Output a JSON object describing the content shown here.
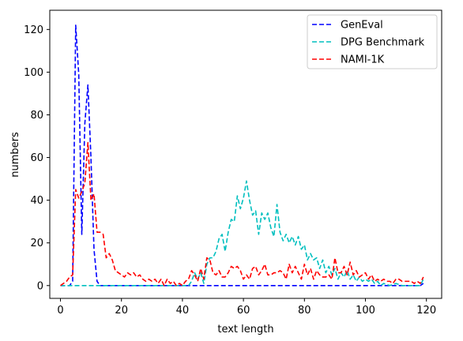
{
  "chart_data": {
    "type": "line",
    "xlabel": "text length",
    "ylabel": "numbers",
    "xlim": [
      -3.5,
      125
    ],
    "ylim": [
      -6,
      129
    ],
    "xticks": [
      0,
      20,
      40,
      60,
      80,
      100,
      120
    ],
    "yticks": [
      0,
      20,
      40,
      60,
      80,
      100,
      120
    ],
    "grid": false,
    "legend_position": "top-right",
    "series": [
      {
        "name": "GenEval",
        "color": "#0000ff",
        "dash": "dashed",
        "points": [
          [
            0,
            0
          ],
          [
            1,
            0
          ],
          [
            2,
            0
          ],
          [
            3,
            0
          ],
          [
            4,
            2
          ],
          [
            5,
            122
          ],
          [
            6,
            99
          ],
          [
            7,
            24
          ],
          [
            8,
            76
          ],
          [
            9,
            94
          ],
          [
            10,
            60
          ],
          [
            11,
            17
          ],
          [
            12,
            2
          ],
          [
            13,
            0
          ],
          [
            14,
            0
          ],
          [
            20,
            0
          ],
          [
            30,
            0
          ],
          [
            40,
            0
          ],
          [
            50,
            0
          ],
          [
            60,
            0
          ],
          [
            70,
            0
          ],
          [
            80,
            0
          ],
          [
            90,
            0
          ],
          [
            100,
            0
          ],
          [
            110,
            0
          ],
          [
            118,
            0
          ],
          [
            119,
            1
          ]
        ]
      },
      {
        "name": "DPG Benchmark",
        "color": "#00bfbf",
        "dash": "dashed",
        "points": [
          [
            0,
            0
          ],
          [
            5,
            0
          ],
          [
            10,
            0
          ],
          [
            20,
            0
          ],
          [
            30,
            0
          ],
          [
            38,
            0
          ],
          [
            40,
            0
          ],
          [
            42,
            0
          ],
          [
            43,
            2
          ],
          [
            44,
            6
          ],
          [
            45,
            3
          ],
          [
            46,
            6
          ],
          [
            47,
            1
          ],
          [
            48,
            10
          ],
          [
            49,
            13
          ],
          [
            50,
            13
          ],
          [
            51,
            16
          ],
          [
            52,
            22
          ],
          [
            53,
            24
          ],
          [
            54,
            16
          ],
          [
            55,
            25
          ],
          [
            56,
            31
          ],
          [
            57,
            30
          ],
          [
            58,
            42
          ],
          [
            59,
            36
          ],
          [
            60,
            41
          ],
          [
            61,
            49
          ],
          [
            62,
            40
          ],
          [
            63,
            33
          ],
          [
            64,
            35
          ],
          [
            65,
            24
          ],
          [
            66,
            34
          ],
          [
            67,
            31
          ],
          [
            68,
            34
          ],
          [
            69,
            27
          ],
          [
            70,
            23
          ],
          [
            71,
            38
          ],
          [
            72,
            25
          ],
          [
            73,
            21
          ],
          [
            74,
            24
          ],
          [
            75,
            20
          ],
          [
            76,
            23
          ],
          [
            77,
            19
          ],
          [
            78,
            23
          ],
          [
            79,
            17
          ],
          [
            80,
            19
          ],
          [
            81,
            12
          ],
          [
            82,
            15
          ],
          [
            83,
            12
          ],
          [
            84,
            13
          ],
          [
            85,
            8
          ],
          [
            86,
            12
          ],
          [
            87,
            6
          ],
          [
            88,
            9
          ],
          [
            89,
            5
          ],
          [
            90,
            8
          ],
          [
            91,
            3
          ],
          [
            92,
            6
          ],
          [
            93,
            4
          ],
          [
            94,
            7
          ],
          [
            95,
            3
          ],
          [
            96,
            5
          ],
          [
            97,
            2
          ],
          [
            98,
            4
          ],
          [
            99,
            2
          ],
          [
            100,
            3
          ],
          [
            101,
            2
          ],
          [
            102,
            3
          ],
          [
            103,
            1
          ],
          [
            104,
            2
          ],
          [
            105,
            0
          ],
          [
            106,
            1
          ],
          [
            108,
            0
          ],
          [
            110,
            1
          ],
          [
            112,
            0
          ],
          [
            114,
            0
          ],
          [
            116,
            0
          ],
          [
            118,
            0
          ],
          [
            119,
            3
          ]
        ]
      },
      {
        "name": "NAMI-1K",
        "color": "#ff0000",
        "dash": "dashed",
        "points": [
          [
            0,
            0
          ],
          [
            1,
            1
          ],
          [
            2,
            2
          ],
          [
            3,
            4
          ],
          [
            4,
            5
          ],
          [
            5,
            45
          ],
          [
            6,
            41
          ],
          [
            7,
            44
          ],
          [
            8,
            48
          ],
          [
            9,
            67
          ],
          [
            10,
            40
          ],
          [
            11,
            43
          ],
          [
            12,
            25
          ],
          [
            13,
            25
          ],
          [
            14,
            24
          ],
          [
            15,
            13
          ],
          [
            16,
            15
          ],
          [
            17,
            12
          ],
          [
            18,
            7
          ],
          [
            19,
            6
          ],
          [
            20,
            5
          ],
          [
            21,
            4
          ],
          [
            22,
            6
          ],
          [
            23,
            5
          ],
          [
            24,
            6
          ],
          [
            25,
            4
          ],
          [
            26,
            5
          ],
          [
            27,
            3
          ],
          [
            28,
            2
          ],
          [
            29,
            3
          ],
          [
            30,
            2
          ],
          [
            31,
            3
          ],
          [
            32,
            1
          ],
          [
            33,
            3
          ],
          [
            34,
            0
          ],
          [
            35,
            3
          ],
          [
            36,
            1
          ],
          [
            37,
            2
          ],
          [
            38,
            0
          ],
          [
            39,
            1
          ],
          [
            40,
            0
          ],
          [
            41,
            2
          ],
          [
            42,
            3
          ],
          [
            43,
            7
          ],
          [
            44,
            5
          ],
          [
            45,
            2
          ],
          [
            46,
            8
          ],
          [
            47,
            3
          ],
          [
            48,
            13
          ],
          [
            49,
            12
          ],
          [
            50,
            6
          ],
          [
            51,
            5
          ],
          [
            52,
            7
          ],
          [
            53,
            4
          ],
          [
            54,
            4
          ],
          [
            55,
            6
          ],
          [
            56,
            9
          ],
          [
            57,
            8
          ],
          [
            58,
            9
          ],
          [
            59,
            7
          ],
          [
            60,
            3
          ],
          [
            61,
            5
          ],
          [
            62,
            3
          ],
          [
            63,
            8
          ],
          [
            64,
            9
          ],
          [
            65,
            5
          ],
          [
            66,
            7
          ],
          [
            67,
            10
          ],
          [
            68,
            5
          ],
          [
            69,
            5
          ],
          [
            70,
            6
          ],
          [
            71,
            6
          ],
          [
            72,
            7
          ],
          [
            73,
            6
          ],
          [
            74,
            3
          ],
          [
            75,
            10
          ],
          [
            76,
            6
          ],
          [
            77,
            9
          ],
          [
            78,
            6
          ],
          [
            79,
            3
          ],
          [
            80,
            10
          ],
          [
            81,
            5
          ],
          [
            82,
            8
          ],
          [
            83,
            3
          ],
          [
            84,
            7
          ],
          [
            85,
            5
          ],
          [
            86,
            4
          ],
          [
            87,
            4
          ],
          [
            88,
            5
          ],
          [
            89,
            3
          ],
          [
            90,
            13
          ],
          [
            91,
            6
          ],
          [
            92,
            6
          ],
          [
            93,
            9
          ],
          [
            94,
            5
          ],
          [
            95,
            11
          ],
          [
            96,
            5
          ],
          [
            97,
            7
          ],
          [
            98,
            4
          ],
          [
            99,
            5
          ],
          [
            100,
            6
          ],
          [
            101,
            3
          ],
          [
            102,
            5
          ],
          [
            103,
            2
          ],
          [
            104,
            3
          ],
          [
            105,
            2
          ],
          [
            106,
            3
          ],
          [
            107,
            2
          ],
          [
            108,
            2
          ],
          [
            109,
            1
          ],
          [
            110,
            3
          ],
          [
            111,
            3
          ],
          [
            112,
            2
          ],
          [
            113,
            2
          ],
          [
            114,
            2
          ],
          [
            115,
            2
          ],
          [
            116,
            1
          ],
          [
            117,
            2
          ],
          [
            118,
            1
          ],
          [
            119,
            4
          ]
        ]
      }
    ]
  }
}
